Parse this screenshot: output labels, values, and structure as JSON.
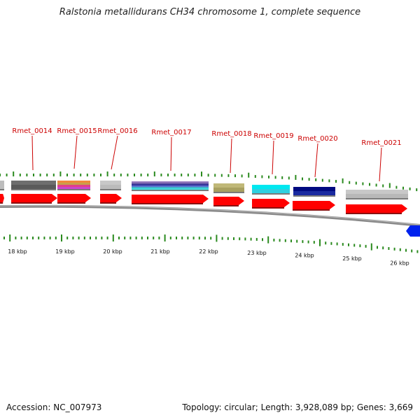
{
  "title": "Ralstonia metallidurans CH34 chromosome 1, complete sequence",
  "accession_text": "Accession: NC_007973",
  "stats_text": "Topology: circular; Length: 3,928,089 bp; Genes: 3,669",
  "colors": {
    "backbone": "#8a8a8a",
    "tick": "#2a8a1e",
    "cds": "#ff0000",
    "label": "#cc0000",
    "leader": "#cc0000",
    "reverse_cds": "#0022ee"
  },
  "genes": [
    {
      "name": "Rmet_0014"
    },
    {
      "name": "Rmet_0015"
    },
    {
      "name": "Rmet_0016"
    },
    {
      "name": "Rmet_0017"
    },
    {
      "name": "Rmet_0018"
    },
    {
      "name": "Rmet_0019"
    },
    {
      "name": "Rmet_0020"
    },
    {
      "name": "Rmet_0021"
    }
  ],
  "scale_labels": [
    "18 kbp",
    "19 kbp",
    "20 kbp",
    "21 kbp",
    "22 kbp",
    "23 kbp",
    "24 kbp",
    "25 kbp",
    "26 kbp"
  ]
}
